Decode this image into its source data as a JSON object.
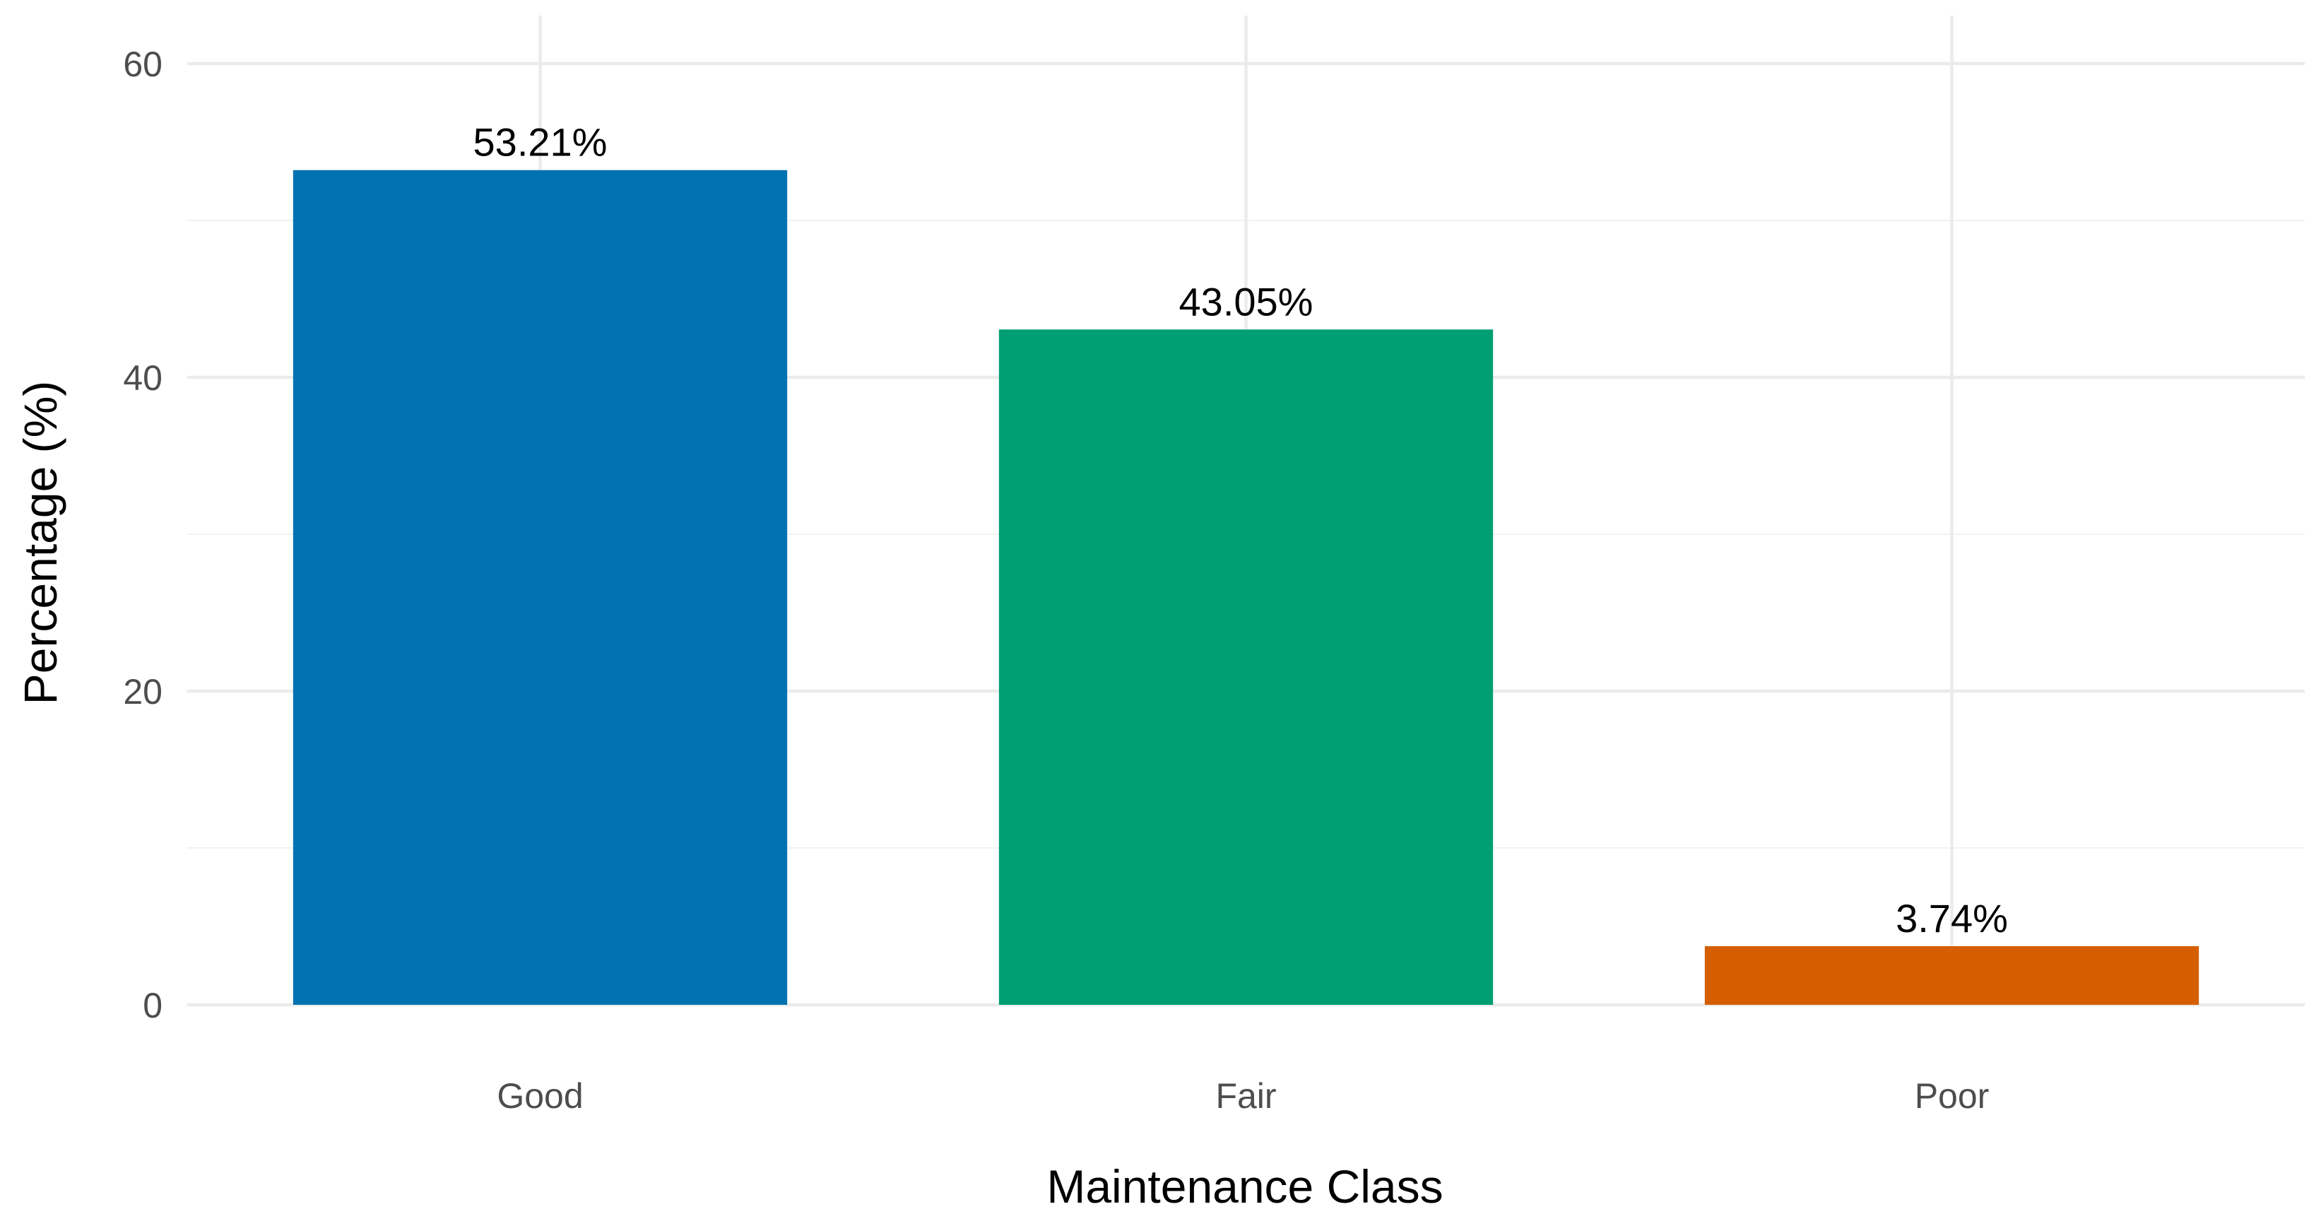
{
  "chart_data": {
    "type": "bar",
    "categories": [
      "Good",
      "Fair",
      "Poor"
    ],
    "values": [
      53.21,
      43.05,
      3.74
    ],
    "labels": [
      "53.21%",
      "43.05%",
      "3.74%"
    ],
    "colors": [
      "#0072B2",
      "#009E73",
      "#D55E00"
    ],
    "title": "",
    "xlabel": "Maintenance Class",
    "ylabel": "Percentage (%)",
    "ylim": [
      0,
      60
    ],
    "yticks": [
      0,
      20,
      40,
      60
    ],
    "ytick_labels": [
      "0",
      "20",
      "40",
      "60"
    ],
    "grid": true,
    "legend": "none"
  }
}
